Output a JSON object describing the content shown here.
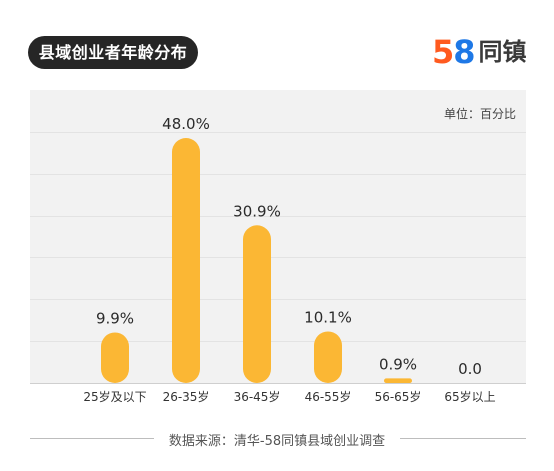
{
  "header": {
    "title": "县域创业者年龄分布",
    "logo_digit_1": "5",
    "logo_digit_2": "8",
    "logo_text": "同镇"
  },
  "unit_note": "单位：百分比",
  "source_note": "数据来源：清华-58同镇县域创业调查",
  "colors": {
    "bar": "#fbb734",
    "plot_background": "#f2f2f2",
    "gridline": "#e3e3e3",
    "title_pill": "#262626"
  },
  "chart_data": {
    "type": "bar",
    "title": "县域创业者年龄分布",
    "categories": [
      "25岁及以下",
      "26-35岁",
      "36-45岁",
      "46-55岁",
      "56-65岁",
      "65岁以上"
    ],
    "values": [
      9.9,
      48.0,
      30.9,
      10.1,
      0.9,
      0.0
    ],
    "value_labels": [
      "9.9%",
      "48.0%",
      "30.9%",
      "10.1%",
      "0.9%",
      "0.0"
    ],
    "ylim": [
      0,
      60
    ],
    "grid": true,
    "legend": "none"
  }
}
